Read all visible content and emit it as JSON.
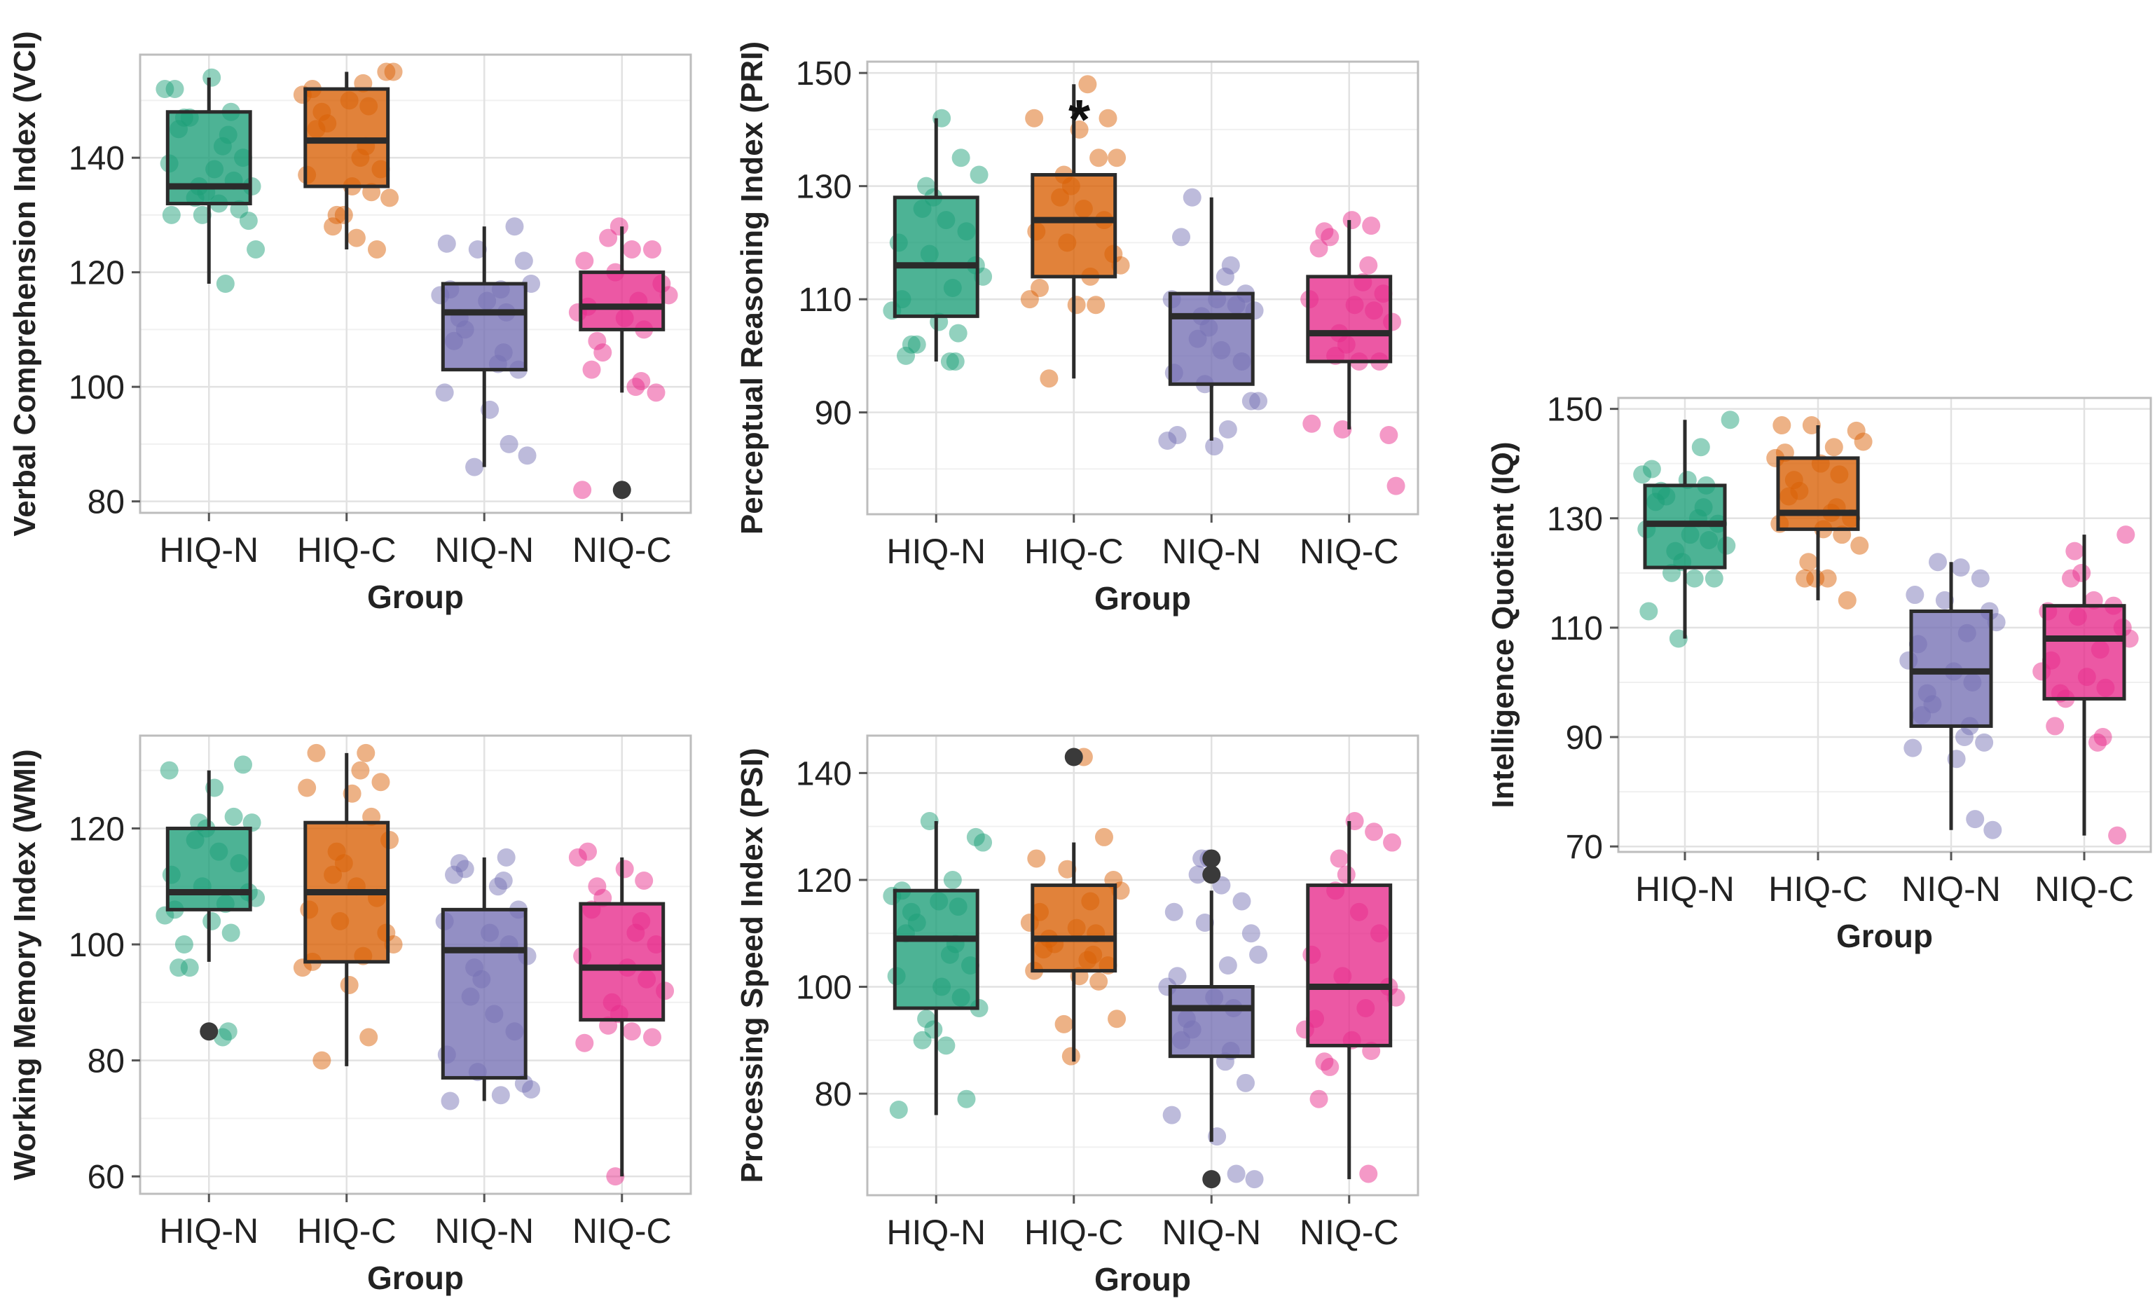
{
  "chart_data": [
    {
      "type": "box",
      "panel": "vci",
      "title": "",
      "xlabel": "Group",
      "ylabel": "Verbal Comprehension Index (VCI)",
      "categories": [
        "HIQ-N",
        "HIQ-C",
        "NIQ-N",
        "NIQ-C"
      ],
      "ylim": [
        78,
        158
      ],
      "yticks": [
        80,
        100,
        120,
        140
      ],
      "boxes": [
        {
          "q1": 132,
          "median": 135,
          "q3": 148,
          "whisker_low": 118,
          "whisker_high": 154,
          "outliers": []
        },
        {
          "q1": 135,
          "median": 143,
          "q3": 152,
          "whisker_low": 124,
          "whisker_high": 155,
          "outliers": []
        },
        {
          "q1": 103,
          "median": 113,
          "q3": 118,
          "whisker_low": 86,
          "whisker_high": 128,
          "outliers": []
        },
        {
          "q1": 110,
          "median": 114,
          "q3": 120,
          "whisker_low": 99,
          "whisker_high": 128,
          "outliers": [
            82
          ]
        }
      ],
      "points": [
        [
          152,
          152,
          154,
          148,
          147,
          147,
          145,
          144,
          142,
          140,
          139,
          138,
          136,
          135,
          135,
          134,
          133,
          132,
          131,
          130,
          130,
          129,
          124,
          118
        ],
        [
          155,
          155,
          153,
          152,
          151,
          150,
          149,
          148,
          146,
          145,
          142,
          140,
          138,
          137,
          135,
          134,
          133,
          130,
          130,
          128,
          126,
          124
        ],
        [
          128,
          125,
          124,
          122,
          118,
          117,
          117,
          116,
          115,
          113,
          112,
          110,
          108,
          106,
          104,
          103,
          99,
          96,
          90,
          88,
          86
        ],
        [
          128,
          126,
          124,
          124,
          122,
          120,
          118,
          116,
          115,
          114,
          113,
          112,
          110,
          108,
          106,
          103,
          101,
          100,
          99,
          82
        ]
      ],
      "annotations": []
    },
    {
      "type": "box",
      "panel": "pri",
      "title": "",
      "xlabel": "Group",
      "ylabel": "Perceptual Reasoning Index (PRI)",
      "categories": [
        "HIQ-N",
        "HIQ-C",
        "NIQ-N",
        "NIQ-C"
      ],
      "ylim": [
        72,
        152
      ],
      "yticks": [
        90,
        110,
        130,
        150
      ],
      "boxes": [
        {
          "q1": 107,
          "median": 116,
          "q3": 128,
          "whisker_low": 99,
          "whisker_high": 142,
          "outliers": []
        },
        {
          "q1": 114,
          "median": 124,
          "q3": 132,
          "whisker_low": 96,
          "whisker_high": 148,
          "outliers": []
        },
        {
          "q1": 95,
          "median": 107,
          "q3": 111,
          "whisker_low": 85,
          "whisker_high": 128,
          "outliers": []
        },
        {
          "q1": 99,
          "median": 104,
          "q3": 114,
          "whisker_low": 87,
          "whisker_high": 124,
          "outliers": []
        }
      ],
      "points": [
        [
          142,
          135,
          132,
          130,
          128,
          126,
          124,
          122,
          120,
          118,
          116,
          114,
          112,
          110,
          108,
          106,
          104,
          102,
          102,
          100,
          99,
          99
        ],
        [
          148,
          142,
          142,
          140,
          135,
          135,
          132,
          130,
          128,
          126,
          124,
          122,
          120,
          118,
          116,
          114,
          112,
          110,
          109,
          109,
          96
        ],
        [
          128,
          121,
          116,
          114,
          111,
          110,
          110,
          109,
          108,
          107,
          105,
          103,
          101,
          99,
          97,
          95,
          92,
          92,
          87,
          86,
          85,
          84
        ],
        [
          124,
          123,
          122,
          121,
          119,
          116,
          113,
          111,
          110,
          109,
          108,
          106,
          104,
          102,
          100,
          99,
          99,
          88,
          87,
          86,
          77
        ]
      ],
      "annotations": [
        "*"
      ]
    },
    {
      "type": "box",
      "panel": "iq",
      "title": "",
      "xlabel": "Group",
      "ylabel": "Intelligence Quotient (IQ)",
      "categories": [
        "HIQ-N",
        "HIQ-C",
        "NIQ-N",
        "NIQ-C"
      ],
      "ylim": [
        69,
        152
      ],
      "yticks": [
        70,
        90,
        110,
        130,
        150
      ],
      "boxes": [
        {
          "q1": 121,
          "median": 129,
          "q3": 136,
          "whisker_low": 108,
          "whisker_high": 148,
          "outliers": []
        },
        {
          "q1": 128,
          "median": 131,
          "q3": 141,
          "whisker_low": 115,
          "whisker_high": 147,
          "outliers": []
        },
        {
          "q1": 92,
          "median": 102,
          "q3": 113,
          "whisker_low": 73,
          "whisker_high": 122,
          "outliers": []
        },
        {
          "q1": 97,
          "median": 108,
          "q3": 114,
          "whisker_low": 72,
          "whisker_high": 127,
          "outliers": []
        }
      ],
      "points": [
        [
          148,
          143,
          139,
          138,
          137,
          136,
          135,
          134,
          133,
          132,
          130,
          129,
          128,
          127,
          126,
          125,
          124,
          122,
          120,
          119,
          119,
          113,
          108
        ],
        [
          147,
          147,
          146,
          144,
          143,
          142,
          141,
          140,
          138,
          137,
          135,
          134,
          132,
          131,
          130,
          129,
          128,
          127,
          125,
          122,
          119,
          119,
          119,
          115
        ],
        [
          122,
          121,
          119,
          116,
          115,
          113,
          111,
          109,
          107,
          104,
          102,
          100,
          98,
          96,
          94,
          92,
          90,
          89,
          88,
          86,
          75,
          73
        ],
        [
          127,
          124,
          120,
          119,
          115,
          114,
          113,
          112,
          110,
          108,
          106,
          104,
          102,
          101,
          99,
          98,
          97,
          92,
          90,
          89,
          72
        ]
      ],
      "annotations": []
    },
    {
      "type": "box",
      "panel": "wmi",
      "title": "",
      "xlabel": "Group",
      "ylabel": "Working Memory Index (WMI)",
      "categories": [
        "HIQ-N",
        "HIQ-C",
        "NIQ-N",
        "NIQ-C"
      ],
      "ylim": [
        57,
        136
      ],
      "yticks": [
        60,
        80,
        100,
        120
      ],
      "boxes": [
        {
          "q1": 106,
          "median": 109,
          "q3": 120,
          "whisker_low": 97,
          "whisker_high": 130,
          "outliers": [
            85
          ]
        },
        {
          "q1": 97,
          "median": 109,
          "q3": 121,
          "whisker_low": 79,
          "whisker_high": 133,
          "outliers": []
        },
        {
          "q1": 77,
          "median": 99,
          "q3": 106,
          "whisker_low": 73,
          "whisker_high": 115,
          "outliers": []
        },
        {
          "q1": 87,
          "median": 96,
          "q3": 107,
          "whisker_low": 60,
          "whisker_high": 115,
          "outliers": []
        }
      ],
      "points": [
        [
          131,
          130,
          127,
          122,
          121,
          121,
          120,
          118,
          116,
          114,
          112,
          110,
          109,
          108,
          107,
          106,
          105,
          104,
          102,
          100,
          96,
          96,
          85,
          84
        ],
        [
          133,
          133,
          130,
          128,
          127,
          126,
          122,
          118,
          116,
          114,
          112,
          110,
          108,
          106,
          104,
          102,
          100,
          98,
          97,
          96,
          93,
          84,
          80
        ],
        [
          115,
          114,
          113,
          112,
          111,
          110,
          106,
          104,
          102,
          100,
          98,
          96,
          94,
          91,
          88,
          85,
          81,
          78,
          76,
          75,
          74,
          73
        ],
        [
          116,
          115,
          113,
          111,
          110,
          108,
          106,
          104,
          102,
          100,
          98,
          96,
          94,
          92,
          90,
          88,
          86,
          85,
          84,
          83,
          60
        ]
      ],
      "annotations": []
    },
    {
      "type": "box",
      "panel": "psi",
      "title": "",
      "xlabel": "Group",
      "ylabel": "Processing Speed Index (PSI)",
      "categories": [
        "HIQ-N",
        "HIQ-C",
        "NIQ-N",
        "NIQ-C"
      ],
      "ylim": [
        61,
        147
      ],
      "yticks": [
        80,
        100,
        120,
        140
      ],
      "boxes": [
        {
          "q1": 96,
          "median": 109,
          "q3": 118,
          "whisker_low": 76,
          "whisker_high": 131,
          "outliers": []
        },
        {
          "q1": 103,
          "median": 109,
          "q3": 119,
          "whisker_low": 86,
          "whisker_high": 127,
          "outliers": [
            143
          ]
        },
        {
          "q1": 87,
          "median": 96,
          "q3": 100,
          "whisker_low": 71,
          "whisker_high": 118,
          "outliers": [
            64,
            121,
            124
          ]
        },
        {
          "q1": 89,
          "median": 100,
          "q3": 119,
          "whisker_low": 64,
          "whisker_high": 131,
          "outliers": []
        }
      ],
      "points": [
        [
          131,
          128,
          127,
          120,
          118,
          117,
          116,
          115,
          114,
          112,
          110,
          108,
          106,
          104,
          102,
          100,
          98,
          96,
          94,
          92,
          90,
          89,
          79,
          77
        ],
        [
          143,
          128,
          124,
          122,
          120,
          118,
          116,
          114,
          112,
          111,
          110,
          109,
          108,
          107,
          106,
          105,
          104,
          103,
          102,
          101,
          94,
          93,
          87
        ],
        [
          124,
          124,
          121,
          119,
          116,
          114,
          112,
          110,
          106,
          104,
          102,
          100,
          98,
          96,
          94,
          92,
          90,
          88,
          86,
          82,
          76,
          72,
          65,
          64
        ],
        [
          131,
          129,
          127,
          124,
          121,
          118,
          114,
          110,
          106,
          102,
          100,
          98,
          96,
          94,
          92,
          90,
          88,
          86,
          85,
          79,
          65
        ]
      ],
      "annotations": []
    }
  ],
  "colors": {
    "HIQ-N": "#1b9e77",
    "HIQ-C": "#d95f02",
    "NIQ-N": "#7570b3",
    "NIQ-C": "#e7298a",
    "outlier": "#3a3a3a",
    "box_line": "#2b2b2b",
    "grid": "#e2e2e2",
    "frame": "#bdbdbd"
  }
}
